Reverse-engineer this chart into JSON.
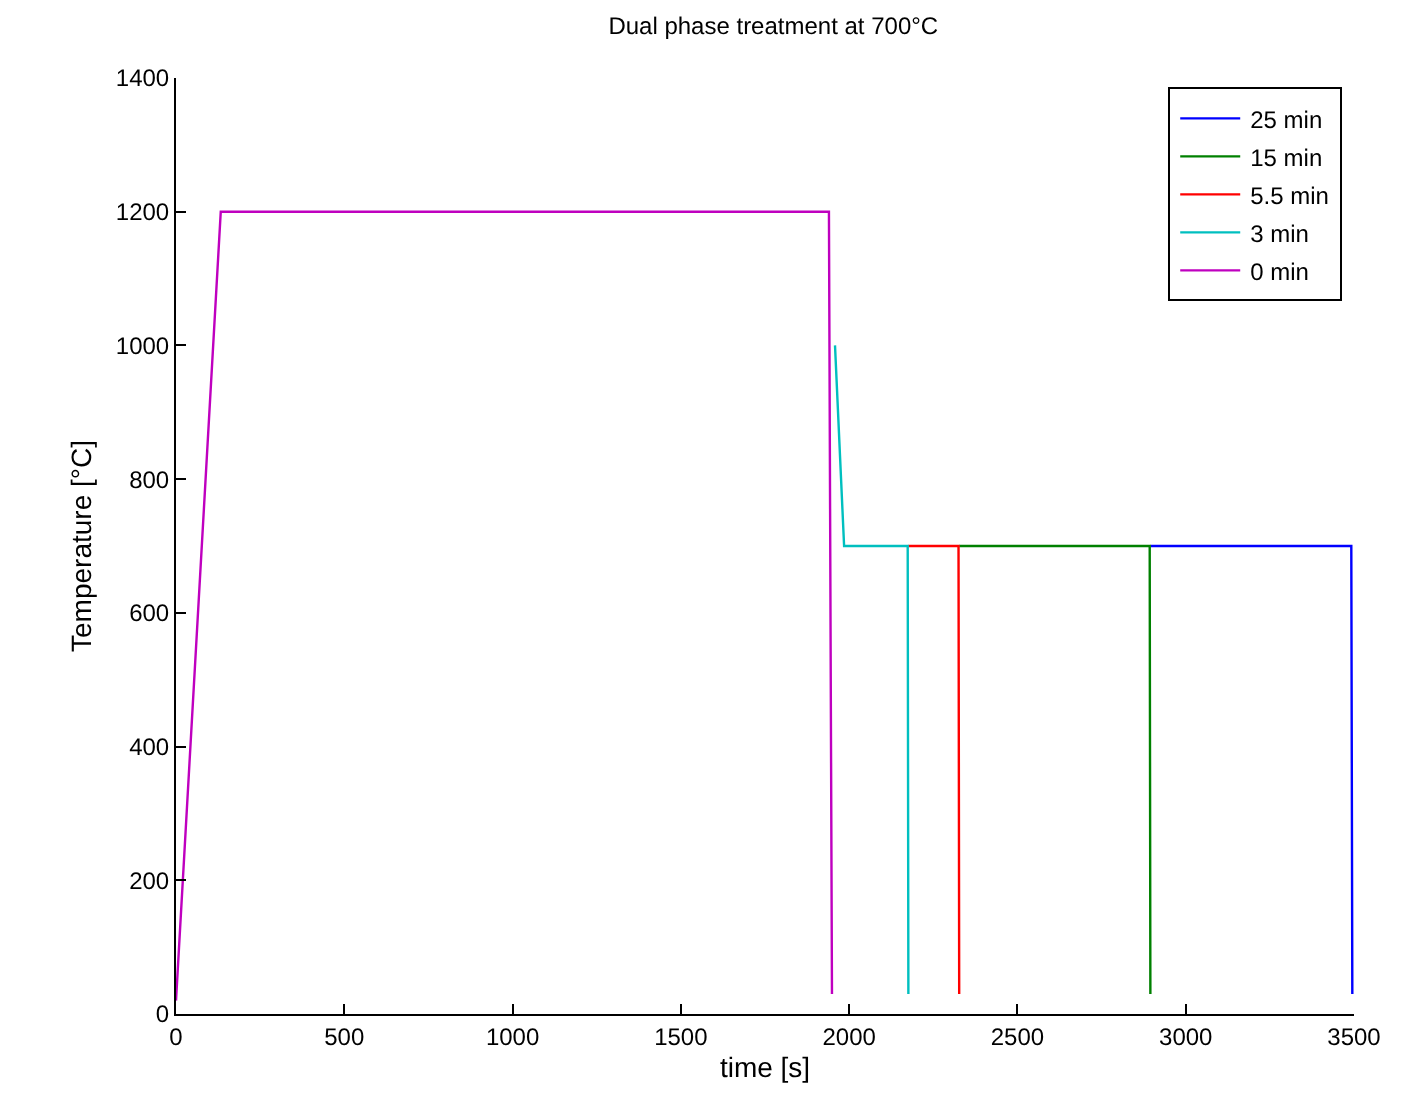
{
  "chart_data": {
    "type": "line",
    "title": "Dual phase treatment at 700°C",
    "xlabel": "time [s]",
    "ylabel": "Temperature [°C]",
    "xlim": [
      0,
      3500
    ],
    "xticks": [
      0,
      500,
      1000,
      1500,
      2000,
      2500,
      3000,
      3500
    ],
    "ylim": [
      0,
      1400
    ],
    "yticks": [
      0,
      200,
      400,
      600,
      800,
      1000,
      1200,
      1400
    ],
    "grid": false,
    "legend": "top right",
    "marker": "none",
    "line_style": "solid",
    "series": [
      {
        "name": "25 min",
        "color": "#0000ff",
        "x": [
          2895,
          3492,
          3495
        ],
        "values": [
          700,
          700,
          30
        ]
      },
      {
        "name": "15 min",
        "color": "#008000",
        "x": [
          2327,
          2893,
          2895
        ],
        "values": [
          700,
          700,
          30
        ]
      },
      {
        "name": "5.5 min",
        "color": "#ff0000",
        "x": [
          2176,
          2325,
          2327
        ],
        "values": [
          700,
          700,
          30
        ]
      },
      {
        "name": "3 min",
        "color": "#00bfbf",
        "x": [
          1958,
          1985,
          2174,
          2176
        ],
        "values": [
          1000,
          700,
          700,
          30
        ]
      },
      {
        "name": "0 min",
        "color": "#bf00bf",
        "x": [
          0,
          133,
          1940,
          1949
        ],
        "values": [
          20,
          1200,
          1200,
          30
        ]
      }
    ]
  }
}
